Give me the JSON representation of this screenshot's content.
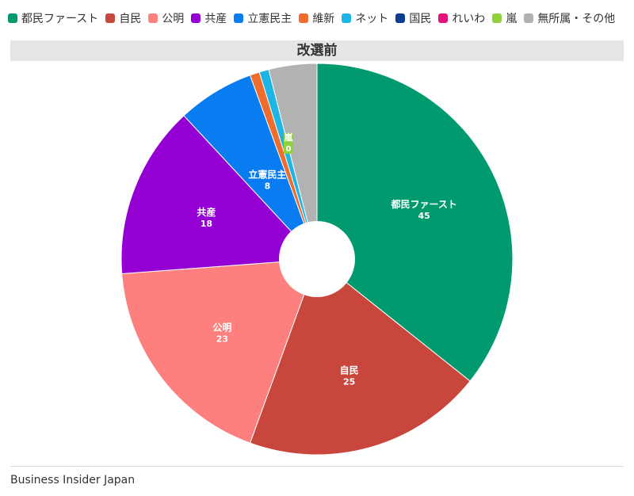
{
  "chart_data": {
    "type": "pie",
    "title": "改選前",
    "legend_position": "top",
    "slices": [
      {
        "name": "都民ファースト",
        "value": 45,
        "color": "#009a6e",
        "label_shown": true
      },
      {
        "name": "自民",
        "value": 25,
        "color": "#c9463d",
        "label_shown": true
      },
      {
        "name": "公明",
        "value": 23,
        "color": "#fd7f7e",
        "label_shown": true
      },
      {
        "name": "共産",
        "value": 18,
        "color": "#9400d3",
        "label_shown": true
      },
      {
        "name": "立憲民主",
        "value": 8,
        "color": "#0a7cf2",
        "label_shown": true
      },
      {
        "name": "維新",
        "value": 1,
        "color": "#ef6c2d",
        "label_shown": false
      },
      {
        "name": "ネット",
        "value": 1,
        "color": "#1cb5e6",
        "label_shown": false
      },
      {
        "name": "国民",
        "value": 0,
        "color": "#0b3d91",
        "label_shown": false
      },
      {
        "name": "れいわ",
        "value": 0,
        "color": "#e4127b",
        "label_shown": false
      },
      {
        "name": "嵐",
        "value": 0,
        "color": "#8ed13a",
        "label_shown": true
      },
      {
        "name": "無所属・その他",
        "value": 5,
        "color": "#b2b2b2",
        "label_shown": false
      }
    ]
  },
  "source": "Business Insider Japan"
}
